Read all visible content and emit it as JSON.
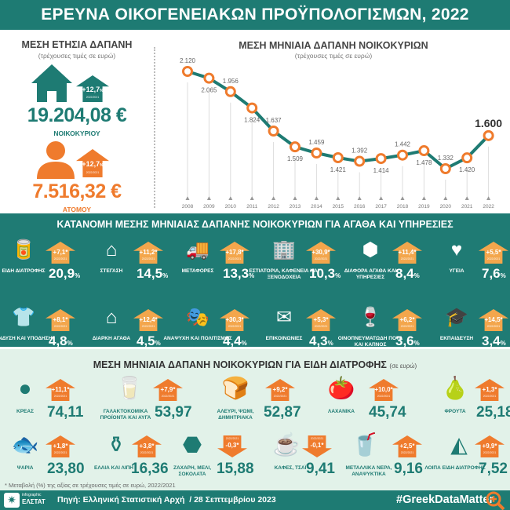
{
  "title": "ΕΡΕΥΝΑ ΟΙΚΟΓΕΝΕΙΑΚΩΝ ΠΡΟΫΠΟΛΟΓΙΣΜΩΝ, 2022",
  "annual": {
    "heading": "ΜΕΣΗ ΕΤΗΣΙΑ ΔΑΠΑΝΗ",
    "subtitle": "(τρέχουσες τιμές σε ευρώ)",
    "household": {
      "value": "19.204,08 €",
      "label": "ΝΟΙΚΟΚΥΡΙΟΥ",
      "change": "+12,7",
      "unit": "%",
      "period": "2022/2021",
      "icon": "house-icon",
      "color": "#1e7b73"
    },
    "person": {
      "value": "7.516,32 €",
      "label": "ΑΤΟΜΟΥ",
      "change": "+12,7",
      "unit": "%",
      "period": "2022/2021",
      "icon": "person-icon",
      "color": "#ef7b2d"
    }
  },
  "chart_data": {
    "type": "line",
    "title": "ΜΕΣΗ ΜΗΝΙΑΙΑ ΔΑΠΑΝΗ ΝΟΙΚΟΚΥΡΙΩΝ",
    "subtitle": "(τρέχουσες τιμές σε ευρώ)",
    "x": [
      "2008",
      "2009",
      "2010",
      "2011",
      "2012",
      "2013",
      "2014",
      "2015",
      "2016",
      "2017",
      "2018",
      "2019",
      "2020",
      "2021",
      "2022"
    ],
    "y": [
      2120,
      2065,
      1956,
      1824,
      1637,
      1509,
      1459,
      1421,
      1392,
      1414,
      1442,
      1478,
      1332,
      1420,
      1600
    ],
    "labels": [
      "2.120",
      "2.065",
      "1.956",
      "1.824",
      "1.637",
      "1.509",
      "1.459",
      "1.421",
      "1.392",
      "1.414",
      "1.442",
      "1.478",
      "1.332",
      "1.420",
      "1.600"
    ],
    "line_color": "#1e7b73",
    "marker_color": "#ef7b2d",
    "grid": false
  },
  "distribution": {
    "title": "ΚΑΤΑΝΟΜΗ ΜΕΣΗΣ ΜΗΝΙΑΙΑΣ ΔΑΠΑΝΗΣ ΝΟΙΚΟΚΥΡΙΩΝ ΓΙΑ ΑΓΑΘΑ ΚΑΙ ΥΠΗΡΕΣΙΕΣ",
    "period": "2022/2021",
    "badge_color": "#f3a64c",
    "items": [
      {
        "label": "ΕΙΔΗ ΔΙΑΤΡΟΦΗΣ",
        "value": "20,9",
        "unit": "%",
        "change": "+7,1*",
        "icon": "groceries-icon"
      },
      {
        "label": "ΣΤΕΓΑΣΗ",
        "value": "14,5",
        "unit": "%",
        "change": "+11,2*",
        "icon": "roof-icon"
      },
      {
        "label": "ΜΕΤΑΦΟΡΕΣ",
        "value": "13,3",
        "unit": "%",
        "change": "+17,8*",
        "icon": "truck-car-icon"
      },
      {
        "label": "ΕΣΤΙΑΤΟΡΙΑ, ΚΑΦΕΝΕΙΑ ΚΑΙ ΞΕΝΟΔΟΧΕΙΑ",
        "value": "10,3",
        "unit": "%",
        "change": "+30,9*",
        "icon": "hotel-icon"
      },
      {
        "label": "ΔΙΑΦΟΡΑ ΑΓΑΘΑ ΚΑΙ ΥΠΗΡΕΣΙΕΣ",
        "value": "8,4",
        "unit": "%",
        "change": "+11,4*",
        "icon": "box-icon"
      },
      {
        "label": "ΥΓΕΙΑ",
        "value": "7,6",
        "unit": "%",
        "change": "+5,5*",
        "icon": "heart-pulse-icon"
      },
      {
        "label": "ΕΝΔΥΣΗ ΚΑΙ ΥΠΟΔΗΣΗ",
        "value": "4,8",
        "unit": "%",
        "change": "+8,1*",
        "icon": "tshirt-shoe-icon"
      },
      {
        "label": "ΔΙΑΡΚΗ ΑΓΑΘΑ",
        "value": "4,5",
        "unit": "%",
        "change": "+12,4*",
        "icon": "hand-house-icon"
      },
      {
        "label": "ΑΝΑΨΥΧΗ ΚΑΙ ΠΟΛΙΤΙΣΜΟΣ",
        "value": "4,4",
        "unit": "%",
        "change": "+30,3*",
        "icon": "theatre-masks-icon"
      },
      {
        "label": "ΕΠΙΚΟΙΝΩΝΙΕΣ",
        "value": "4,3",
        "unit": "%",
        "change": "+5,3*",
        "icon": "phone-envelope-icon"
      },
      {
        "label": "ΟΙΝΟΠΝΕΥΜΑΤΩΔΗ ΠΟΤΑ ΚΑΙ ΚΑΠΝΟΣ",
        "value": "3,6",
        "unit": "%",
        "change": "+6,2*",
        "icon": "wine-cigarette-icon"
      },
      {
        "label": "ΕΚΠΑΙΔΕΥΣΗ",
        "value": "3,4",
        "unit": "%",
        "change": "+14,5*",
        "icon": "graduation-cap-icon"
      }
    ]
  },
  "food": {
    "title": "ΜΕΣΗ ΜΗΝΙΑΙΑ ΔΑΠΑΝΗ ΝΟΙΚΟΚΥΡΙΩΝ ΓΙΑ ΕΙΔΗ ΔΙΑΤΡΟΦΗΣ",
    "unit_note": "(σε ευρώ)",
    "period": "2022/2021",
    "badge_color": "#ef7b2d",
    "items": [
      {
        "label": "ΚΡΕΑΣ",
        "value": "74,11",
        "change": "+11,1*",
        "direction": "up",
        "icon": "steak-icon"
      },
      {
        "label": "ΓΑΛΑΚΤΟΚΟΜΙΚΑ ΠΡΟΪΟΝΤΑ ΚΑΙ ΑΥΓΑ",
        "value": "53,97",
        "change": "+7,9*",
        "direction": "up",
        "icon": "dairy-icon"
      },
      {
        "label": "ΑΛΕΥΡΙ, ΨΩΜΙ, ΔΗΜΗΤΡΙΑΚΑ",
        "value": "52,87",
        "change": "+9,2*",
        "direction": "up",
        "icon": "bread-icon"
      },
      {
        "label": "ΛΑΧΑΝΙΚΑ",
        "value": "45,74",
        "change": "+10,0*",
        "direction": "up",
        "icon": "vegetables-icon"
      },
      {
        "label": "ΦΡΟΥΤΑ",
        "value": "25,18",
        "change": "+1,3*",
        "direction": "up",
        "icon": "fruit-icon"
      },
      {
        "label": "ΨΑΡΙΑ",
        "value": "23,80",
        "change": "+1,8*",
        "direction": "up",
        "icon": "fish-icon"
      },
      {
        "label": "ΕΛΑΙΑ ΚΑΙ ΛΙΠΗ",
        "value": "16,36",
        "change": "+3,8*",
        "direction": "up",
        "icon": "oil-bottle-icon"
      },
      {
        "label": "ΖΑΧΑΡΗ, ΜΕΛΙ, ΣΟΚΟΛΑΤΑ",
        "value": "15,88",
        "change": "-0,3*",
        "direction": "down",
        "icon": "sugar-honey-icon"
      },
      {
        "label": "ΚΑΦΕΣ, ΤΣΑΪ",
        "value": "9,41",
        "change": "-0,1*",
        "direction": "down",
        "icon": "coffee-cup-icon"
      },
      {
        "label": "ΜΕΤΑΛΛΙΚΑ ΝΕΡΑ, ΑΝΑΨΥΚΤΙΚΑ",
        "value": "9,16",
        "change": "+2,5*",
        "direction": "up",
        "icon": "soft-drink-icon"
      },
      {
        "label": "ΛΟΙΠΑ ΕΙΔΗ ΔΙΑΤΡΟΦΗΣ",
        "value": "7,52",
        "change": "+9,9*",
        "direction": "up",
        "icon": "triangle-circle-icon"
      }
    ],
    "footnote": "* Μεταβολή (%) της αξίας σε τρέχουσες τιμές σε ευρώ, 2022/2021"
  },
  "footer": {
    "logo_small": "infographic",
    "logo_name": "ΕΛΣΤΑΤ",
    "source": "Πηγή: Ελληνική Στατιστική Αρχή  / 28 Σεπτεμβρίου 2023",
    "hashtag": "#GreekDataMatter",
    "zoom_icon": "magnifier-plus-icon"
  }
}
